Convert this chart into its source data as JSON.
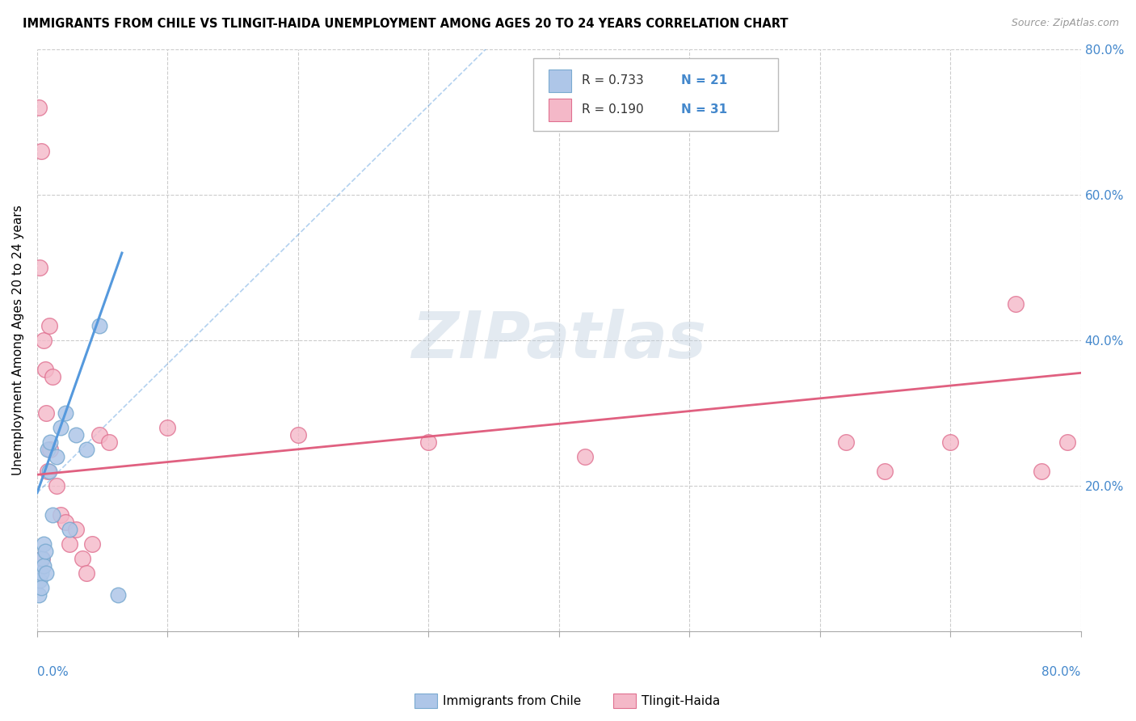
{
  "title": "IMMIGRANTS FROM CHILE VS TLINGIT-HAIDA UNEMPLOYMENT AMONG AGES 20 TO 24 YEARS CORRELATION CHART",
  "source": "Source: ZipAtlas.com",
  "ylabel": "Unemployment Among Ages 20 to 24 years",
  "xlim": [
    0,
    0.8
  ],
  "ylim": [
    0,
    0.8
  ],
  "legend1_R": "R = 0.733",
  "legend1_N": "N = 21",
  "legend2_R": "R = 0.190",
  "legend2_N": "N = 31",
  "series1_label": "Immigrants from Chile",
  "series2_label": "Tlingit-Haida",
  "color_blue_fill": "#AEC6E8",
  "color_blue_edge": "#7AAAD0",
  "color_pink_fill": "#F4B8C8",
  "color_pink_edge": "#E07090",
  "color_blue_trend": "#5599DD",
  "color_pink_trend": "#E06080",
  "ytick_vals": [
    0.0,
    0.2,
    0.4,
    0.6,
    0.8
  ],
  "ytick_labels_right": [
    "",
    "20.0%",
    "40.0%",
    "60.0%",
    "80.0%"
  ],
  "xtick_vals": [
    0.0,
    0.1,
    0.2,
    0.3,
    0.4,
    0.5,
    0.6,
    0.7,
    0.8
  ],
  "blue_x": [
    0.001,
    0.002,
    0.003,
    0.003,
    0.004,
    0.005,
    0.005,
    0.006,
    0.007,
    0.008,
    0.009,
    0.01,
    0.012,
    0.015,
    0.018,
    0.022,
    0.025,
    0.03,
    0.038,
    0.048,
    0.062
  ],
  "blue_y": [
    0.05,
    0.07,
    0.08,
    0.06,
    0.1,
    0.09,
    0.12,
    0.11,
    0.08,
    0.25,
    0.22,
    0.26,
    0.16,
    0.24,
    0.28,
    0.3,
    0.14,
    0.27,
    0.25,
    0.42,
    0.05
  ],
  "pink_x": [
    0.001,
    0.002,
    0.003,
    0.004,
    0.005,
    0.006,
    0.007,
    0.008,
    0.009,
    0.01,
    0.012,
    0.015,
    0.018,
    0.022,
    0.025,
    0.03,
    0.035,
    0.038,
    0.042,
    0.048,
    0.055,
    0.1,
    0.2,
    0.3,
    0.42,
    0.62,
    0.65,
    0.7,
    0.75,
    0.77,
    0.79
  ],
  "pink_y": [
    0.72,
    0.5,
    0.66,
    0.1,
    0.4,
    0.36,
    0.3,
    0.22,
    0.42,
    0.25,
    0.35,
    0.2,
    0.16,
    0.15,
    0.12,
    0.14,
    0.1,
    0.08,
    0.12,
    0.27,
    0.26,
    0.28,
    0.27,
    0.26,
    0.24,
    0.26,
    0.22,
    0.26,
    0.45,
    0.22,
    0.26
  ],
  "blue_trend_x": [
    0.0,
    0.065
  ],
  "blue_trend_y": [
    0.19,
    0.52
  ],
  "pink_trend_x": [
    0.0,
    0.8
  ],
  "pink_trend_y": [
    0.215,
    0.355
  ],
  "watermark_text": "ZIPatlas",
  "bg_color": "#FFFFFF",
  "grid_color": "#CCCCCC"
}
